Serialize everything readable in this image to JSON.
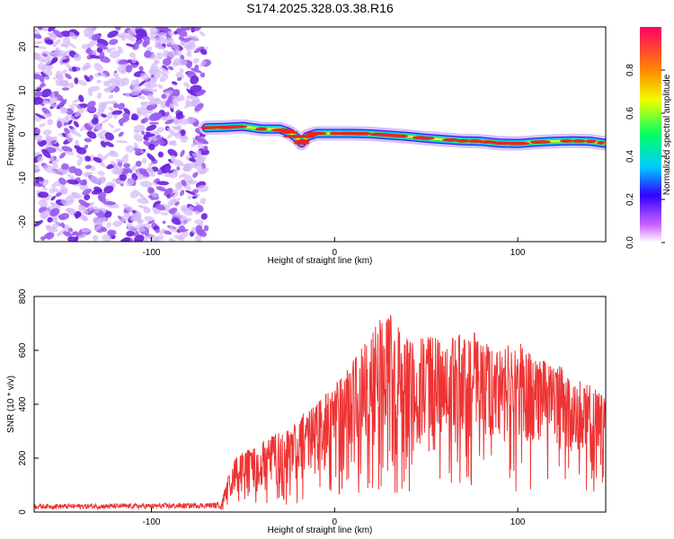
{
  "chart_data": [
    {
      "type": "heatmap",
      "title": "S174.2025.328.03.38.R16",
      "xlabel": "Height of straight line (km)",
      "ylabel": "Frequency (Hz)",
      "xlim": [
        -164,
        148
      ],
      "ylim": [
        -24.5,
        24.5
      ],
      "x_ticks": [
        -100,
        0,
        100
      ],
      "x_tick_labels": [
        "-100",
        "0",
        "100"
      ],
      "y_ticks": [
        -20,
        -10,
        0,
        10,
        20
      ],
      "y_tick_labels": [
        "-20",
        "-10",
        "0",
        "10",
        "20"
      ],
      "colorbar": {
        "label": "Normalized spectral amplitude",
        "range": [
          0,
          1
        ],
        "ticks": [
          0,
          0.2,
          0.4,
          0.6,
          0.8
        ],
        "tick_labels": [
          "0.0",
          "0.2",
          "0.4",
          "0.6",
          "0.8"
        ]
      },
      "noise_region_x": [
        -164,
        -70
      ],
      "signal_ridge": {
        "x": [
          -70,
          -60,
          -50,
          -40,
          -30,
          -25,
          -20,
          -18,
          -15,
          -10,
          0,
          10,
          20,
          30,
          40,
          50,
          60,
          70,
          80,
          90,
          100,
          110,
          120,
          130,
          140,
          148
        ],
        "freq": [
          1.5,
          1.6,
          1.8,
          1.2,
          1.2,
          0.5,
          -1.0,
          -2.0,
          -0.5,
          0.2,
          0.2,
          0.2,
          0.1,
          -0.2,
          -0.5,
          -0.9,
          -1.2,
          -1.5,
          -1.6,
          -2.0,
          -2.1,
          -1.8,
          -1.6,
          -1.5,
          -1.6,
          -2.1
        ]
      }
    },
    {
      "type": "line",
      "xlabel": "Height of straight line (km)",
      "ylabel": "SNR (10 * v/v)",
      "xlim": [
        -164,
        148
      ],
      "ylim": [
        0,
        800
      ],
      "x_ticks": [
        -100,
        0,
        100
      ],
      "x_tick_labels": [
        "-100",
        "0",
        "100"
      ],
      "y_ticks": [
        0,
        200,
        400,
        600,
        800
      ],
      "y_tick_labels": [
        "0",
        "200",
        "400",
        "600",
        "800"
      ],
      "series": [
        {
          "name": "SNR",
          "color": "#ee3333",
          "envelope_x": [
            -164,
            -100,
            -62,
            -55,
            -45,
            -30,
            -20,
            -10,
            0,
            10,
            20,
            25,
            30,
            35,
            45,
            60,
            75,
            90,
            100,
            110,
            120,
            130,
            140,
            148
          ],
          "envelope_top": [
            30,
            32,
            35,
            200,
            240,
            300,
            360,
            400,
            470,
            560,
            660,
            720,
            740,
            690,
            660,
            640,
            670,
            600,
            640,
            560,
            560,
            500,
            470,
            420
          ],
          "envelope_low": [
            12,
            12,
            15,
            50,
            60,
            80,
            90,
            110,
            160,
            200,
            240,
            240,
            240,
            200,
            220,
            240,
            260,
            210,
            250,
            220,
            220,
            200,
            190,
            240
          ]
        }
      ]
    }
  ],
  "colors": {
    "noise_purple": "#7a33e6",
    "snr_line": "#ee3333"
  }
}
